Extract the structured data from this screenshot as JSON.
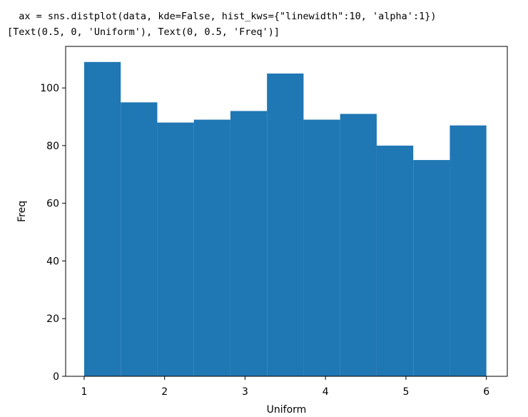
{
  "output": [
    "  ax = sns.distplot(data, kde=False, hist_kws={\"linewidth\":10, 'alpha':1})",
    "[Text(0.5, 0, 'Uniform'), Text(0, 0.5, 'Freq')]"
  ],
  "chart_data": {
    "type": "histogram",
    "xlabel": "Uniform",
    "ylabel": "Freq",
    "color": "#1f77b4",
    "bins": [
      1,
      1.4545,
      1.9091,
      2.3636,
      2.8182,
      3.2727,
      3.7273,
      4.1818,
      4.6364,
      5.0909,
      5.5455,
      6
    ],
    "values": [
      109,
      95,
      88,
      89,
      92,
      105,
      89,
      91,
      80,
      75,
      87
    ],
    "xlim": [
      0.77,
      6.26
    ],
    "ylim": [
      0,
      114.4
    ],
    "xticks": [
      1,
      2,
      3,
      4,
      5,
      6
    ],
    "yticks": [
      0,
      20,
      40,
      60,
      80,
      100
    ]
  }
}
